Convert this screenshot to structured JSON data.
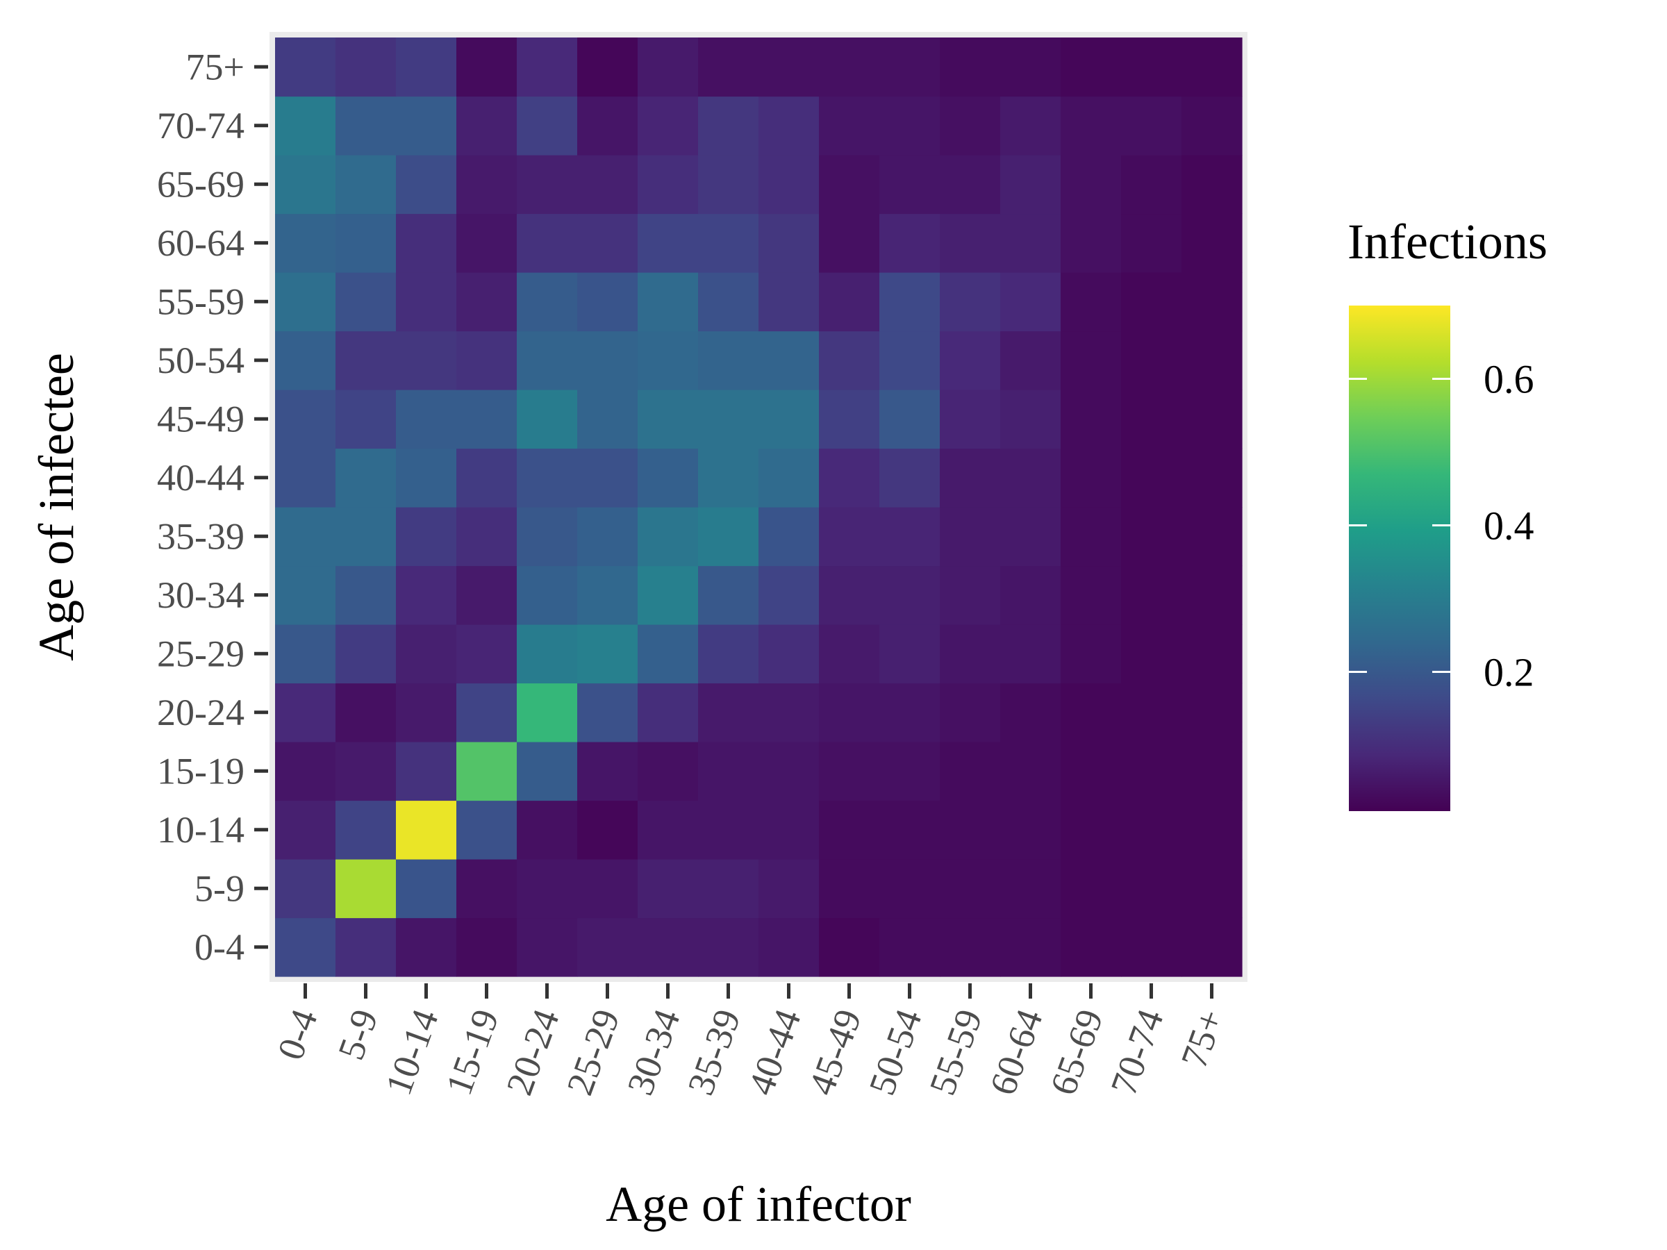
{
  "chart_data": {
    "type": "heatmap",
    "xlabel": "Age of infector",
    "ylabel": "Age of infectee",
    "x_categories": [
      "0-4",
      "5-9",
      "10-14",
      "15-19",
      "20-24",
      "25-29",
      "30-34",
      "35-39",
      "40-44",
      "45-49",
      "50-54",
      "55-59",
      "60-64",
      "65-69",
      "70-74",
      "75+"
    ],
    "y_categories": [
      "0-4",
      "5-9",
      "10-14",
      "15-19",
      "20-24",
      "25-29",
      "30-34",
      "35-39",
      "40-44",
      "45-49",
      "50-54",
      "55-59",
      "60-64",
      "65-69",
      "70-74",
      "75+"
    ],
    "values": [
      [
        0.16,
        0.1,
        0.05,
        0.03,
        0.05,
        0.06,
        0.06,
        0.06,
        0.05,
        0.02,
        0.03,
        0.03,
        0.03,
        0.02,
        0.02,
        0.02
      ],
      [
        0.12,
        0.61,
        0.19,
        0.04,
        0.05,
        0.05,
        0.07,
        0.07,
        0.06,
        0.03,
        0.03,
        0.03,
        0.03,
        0.02,
        0.02,
        0.02
      ],
      [
        0.07,
        0.15,
        0.68,
        0.18,
        0.04,
        0.02,
        0.05,
        0.05,
        0.05,
        0.03,
        0.03,
        0.03,
        0.03,
        0.02,
        0.02,
        0.02
      ],
      [
        0.05,
        0.06,
        0.11,
        0.51,
        0.21,
        0.05,
        0.04,
        0.05,
        0.05,
        0.04,
        0.04,
        0.03,
        0.03,
        0.02,
        0.02,
        0.02
      ],
      [
        0.09,
        0.04,
        0.06,
        0.15,
        0.47,
        0.18,
        0.1,
        0.06,
        0.06,
        0.05,
        0.05,
        0.04,
        0.03,
        0.02,
        0.02,
        0.02
      ],
      [
        0.2,
        0.13,
        0.07,
        0.08,
        0.3,
        0.31,
        0.22,
        0.13,
        0.1,
        0.06,
        0.07,
        0.05,
        0.05,
        0.03,
        0.02,
        0.02
      ],
      [
        0.25,
        0.2,
        0.09,
        0.06,
        0.22,
        0.24,
        0.31,
        0.2,
        0.15,
        0.07,
        0.07,
        0.06,
        0.05,
        0.03,
        0.02,
        0.02
      ],
      [
        0.25,
        0.25,
        0.13,
        0.1,
        0.2,
        0.22,
        0.28,
        0.3,
        0.19,
        0.08,
        0.08,
        0.06,
        0.06,
        0.03,
        0.02,
        0.02
      ],
      [
        0.18,
        0.25,
        0.22,
        0.13,
        0.18,
        0.18,
        0.22,
        0.27,
        0.25,
        0.09,
        0.12,
        0.06,
        0.06,
        0.03,
        0.02,
        0.02
      ],
      [
        0.18,
        0.15,
        0.21,
        0.21,
        0.3,
        0.23,
        0.27,
        0.27,
        0.27,
        0.14,
        0.2,
        0.08,
        0.07,
        0.03,
        0.02,
        0.02
      ],
      [
        0.22,
        0.12,
        0.12,
        0.11,
        0.23,
        0.23,
        0.24,
        0.23,
        0.23,
        0.12,
        0.16,
        0.09,
        0.06,
        0.03,
        0.02,
        0.02
      ],
      [
        0.26,
        0.18,
        0.1,
        0.07,
        0.21,
        0.19,
        0.25,
        0.18,
        0.12,
        0.07,
        0.16,
        0.11,
        0.09,
        0.03,
        0.02,
        0.02
      ],
      [
        0.23,
        0.22,
        0.1,
        0.05,
        0.11,
        0.11,
        0.15,
        0.15,
        0.12,
        0.04,
        0.08,
        0.07,
        0.07,
        0.04,
        0.03,
        0.02
      ],
      [
        0.28,
        0.25,
        0.17,
        0.06,
        0.07,
        0.07,
        0.1,
        0.12,
        0.1,
        0.04,
        0.05,
        0.05,
        0.07,
        0.04,
        0.03,
        0.02
      ],
      [
        0.3,
        0.21,
        0.21,
        0.07,
        0.14,
        0.05,
        0.08,
        0.12,
        0.1,
        0.05,
        0.05,
        0.04,
        0.06,
        0.04,
        0.04,
        0.03
      ],
      [
        0.13,
        0.11,
        0.13,
        0.03,
        0.09,
        0.02,
        0.06,
        0.04,
        0.04,
        0.04,
        0.04,
        0.03,
        0.03,
        0.02,
        0.02,
        0.02
      ]
    ],
    "colorscale": "viridis",
    "legend": {
      "title": "Infections",
      "ticks": [
        0.2,
        0.4,
        0.6
      ],
      "tick_labels": [
        "0.2",
        "0.4",
        "0.6"
      ],
      "range": [
        0.01,
        0.7
      ],
      "placement": "right"
    },
    "grid": false
  }
}
